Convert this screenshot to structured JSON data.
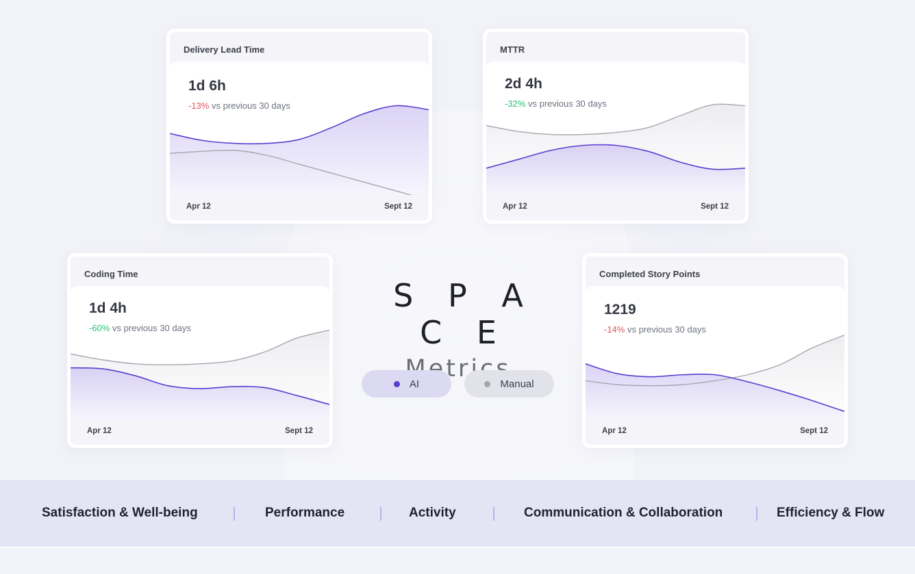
{
  "title": "S P A C E",
  "subtitle": "Metrics",
  "toggles": {
    "ai": "AI",
    "manual": "Manual"
  },
  "colors": {
    "ai": "#5b3ccf",
    "manual": "#a4a6ae",
    "negative": "#e0535c",
    "positive": "#2fbf7a"
  },
  "cards": [
    {
      "title": "Delivery Lead Time",
      "value": "1d 6h",
      "delta": "-13%",
      "delta_suffix": " vs previous 30 days",
      "x_start": "Apr 12",
      "x_end": "Sept 12"
    },
    {
      "title": "MTTR",
      "value": "2d 4h",
      "delta": "-32%",
      "delta_suffix": " vs previous 30 days",
      "x_start": "Apr 12",
      "x_end": "Sept 12"
    },
    {
      "title": "Coding Time",
      "value": "1d 4h",
      "delta": "-60%",
      "delta_suffix": " vs previous 30 days",
      "x_start": "Apr 12",
      "x_end": "Sept 12"
    },
    {
      "title": "Completed Story Points",
      "value": "1219",
      "delta": "-14%",
      "delta_suffix": " vs previous 30 days",
      "x_start": "Apr 12",
      "x_end": "Sept 12"
    }
  ],
  "chart_data": [
    {
      "type": "area",
      "x": [
        "Apr 12",
        "",
        "",
        "",
        "",
        "",
        "",
        "",
        "Sept 12"
      ],
      "ylim": [
        0,
        1
      ],
      "series": [
        {
          "values": [
            0.62,
            0.55,
            0.52,
            0.52,
            0.56,
            0.68,
            0.82,
            0.9,
            0.86
          ]
        },
        {
          "values": [
            0.42,
            0.44,
            0.45,
            0.4,
            0.31,
            0.22,
            0.13,
            0.04,
            -0.05
          ]
        }
      ]
    },
    {
      "type": "area",
      "x": [
        "Apr 12",
        "",
        "",
        "",
        "",
        "",
        "",
        "",
        "Sept 12"
      ],
      "ylim": [
        0,
        1
      ],
      "series": [
        {
          "values": [
            0.27,
            0.36,
            0.45,
            0.5,
            0.5,
            0.44,
            0.33,
            0.26,
            0.27
          ]
        },
        {
          "values": [
            0.7,
            0.64,
            0.61,
            0.61,
            0.63,
            0.68,
            0.8,
            0.91,
            0.9
          ]
        }
      ]
    },
    {
      "type": "area",
      "x": [
        "Apr 12",
        "",
        "",
        "",
        "",
        "",
        "",
        "",
        "Sept 12"
      ],
      "ylim": [
        0,
        1
      ],
      "series": [
        {
          "values": [
            0.52,
            0.51,
            0.44,
            0.34,
            0.31,
            0.33,
            0.32,
            0.24,
            0.15
          ]
        },
        {
          "values": [
            0.66,
            0.6,
            0.56,
            0.55,
            0.56,
            0.59,
            0.68,
            0.82,
            0.9
          ]
        }
      ]
    },
    {
      "type": "area",
      "x": [
        "Apr 12",
        "",
        "",
        "",
        "",
        "",
        "",
        "",
        "Sept 12"
      ],
      "ylim": [
        0,
        1
      ],
      "series": [
        {
          "values": [
            0.56,
            0.46,
            0.43,
            0.45,
            0.45,
            0.38,
            0.29,
            0.19,
            0.08
          ]
        },
        {
          "values": [
            0.39,
            0.35,
            0.34,
            0.35,
            0.39,
            0.45,
            0.55,
            0.72,
            0.85
          ]
        }
      ]
    }
  ],
  "dimensions": [
    "Satisfaction & Well-being",
    "Performance",
    "Activity",
    "Communication & Collaboration",
    "Efficiency & Flow"
  ]
}
